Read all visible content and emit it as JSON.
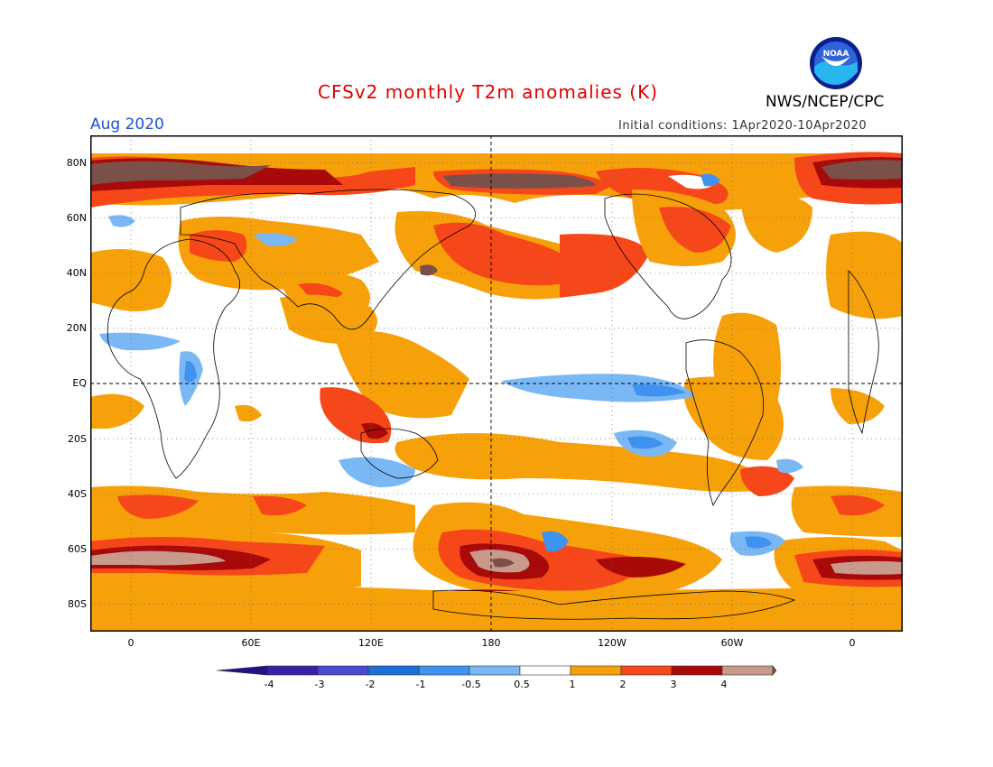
{
  "header": {
    "title": "CFSv2 monthly T2m anomalies (K)",
    "organization": "NWS/NCEP/CPC",
    "month": "Aug 2020",
    "initial_conditions": "Initial conditions: 1Apr2020-10Apr2020",
    "logo_text": "NOAA"
  },
  "axes": {
    "lat_labels": [
      "80N",
      "60N",
      "40N",
      "20N",
      "EQ",
      "20S",
      "40S",
      "60S",
      "80S"
    ],
    "lon_labels": [
      "0",
      "60E",
      "120E",
      "180",
      "120W",
      "60W",
      "0"
    ]
  },
  "legend": {
    "labels": [
      "-4",
      "-3",
      "-2",
      "-1",
      "-0.5",
      "0.5",
      "1",
      "2",
      "3",
      "4"
    ],
    "colors": [
      "#3a1fa8",
      "#4a4ad0",
      "#1f6fd8",
      "#3f92ef",
      "#7ab8f5",
      "#ffffff",
      "#f7a10a",
      "#f6471a",
      "#a80a0a",
      "#c89a8c",
      "#7a5048",
      "#20108a"
    ]
  },
  "palette": {
    "warm1": "#f7a10a",
    "warm2": "#f6471a",
    "warm3": "#a80a0a",
    "warm4": "#c89a8c",
    "warm5": "#7a5048",
    "cool1": "#7ab8f5",
    "cool2": "#3f92ef",
    "cool3": "#1f6fd8"
  }
}
